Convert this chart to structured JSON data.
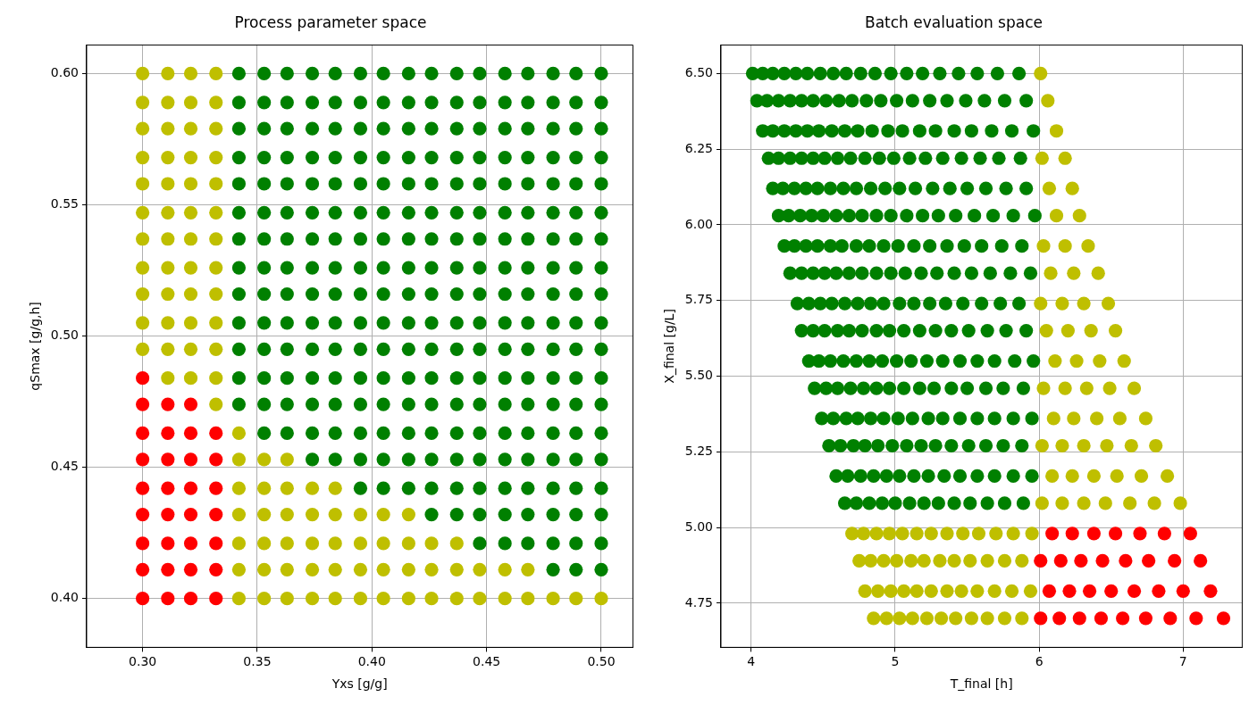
{
  "chart_data": [
    {
      "type": "scatter",
      "title": "Process parameter space",
      "xlabel": "Yxs [g/g]",
      "ylabel": "qSmax [g/g,h]",
      "xlim": [
        0.2756,
        0.5138
      ],
      "ylim": [
        0.3814,
        0.6109
      ],
      "xticks": [
        {
          "value": 0.3,
          "label": "0.30"
        },
        0.35,
        {
          "value": 0.4,
          "label": "0.40"
        },
        0.45,
        {
          "value": 0.5,
          "label": "0.50"
        }
      ],
      "yticks": [
        {
          "value": 0.4,
          "label": "0.40"
        },
        0.45,
        {
          "value": 0.5,
          "label": "0.50"
        },
        0.55,
        {
          "value": 0.6,
          "label": "0.60"
        }
      ],
      "grid": true,
      "legend": false,
      "marker": "circle",
      "series": [
        {
          "color": "#ff0000",
          "x": [
            0.3,
            0.3,
            0.3,
            0.3,
            0.3,
            0.3,
            0.3,
            0.3,
            0.3,
            0.311,
            0.311,
            0.311,
            0.311,
            0.311,
            0.311,
            0.311,
            0.311,
            0.321,
            0.321,
            0.321,
            0.321,
            0.321,
            0.321,
            0.321,
            0.321,
            0.332,
            0.332,
            0.332,
            0.332,
            0.332,
            0.332,
            0.332
          ],
          "values": [
            0.4,
            0.411,
            0.421,
            0.432,
            0.442,
            0.453,
            0.463,
            0.474,
            0.484,
            0.4,
            0.411,
            0.421,
            0.432,
            0.442,
            0.453,
            0.463,
            0.474,
            0.4,
            0.411,
            0.421,
            0.432,
            0.442,
            0.453,
            0.463,
            0.474,
            0.4,
            0.411,
            0.421,
            0.432,
            0.442,
            0.453,
            0.463
          ]
        },
        {
          "color": "#bfbf00",
          "x": [
            0.3,
            0.3,
            0.3,
            0.3,
            0.3,
            0.3,
            0.3,
            0.3,
            0.3,
            0.3,
            0.3,
            0.311,
            0.311,
            0.311,
            0.311,
            0.311,
            0.311,
            0.311,
            0.311,
            0.311,
            0.311,
            0.311,
            0.311,
            0.321,
            0.321,
            0.321,
            0.321,
            0.321,
            0.321,
            0.321,
            0.321,
            0.321,
            0.321,
            0.321,
            0.321,
            0.332,
            0.332,
            0.332,
            0.332,
            0.332,
            0.332,
            0.332,
            0.332,
            0.332,
            0.332,
            0.332,
            0.332,
            0.332,
            0.342,
            0.342,
            0.342,
            0.342,
            0.342,
            0.342,
            0.342,
            0.353,
            0.353,
            0.353,
            0.353,
            0.353,
            0.353,
            0.363,
            0.363,
            0.363,
            0.363,
            0.363,
            0.363,
            0.374,
            0.374,
            0.374,
            0.374,
            0.374,
            0.384,
            0.384,
            0.384,
            0.384,
            0.384,
            0.395,
            0.395,
            0.395,
            0.395,
            0.405,
            0.405,
            0.405,
            0.405,
            0.416,
            0.416,
            0.416,
            0.416,
            0.426,
            0.426,
            0.426,
            0.437,
            0.437,
            0.437,
            0.447,
            0.447,
            0.458,
            0.458,
            0.468,
            0.468,
            0.479,
            0.489,
            0.5
          ],
          "values": [
            0.495,
            0.505,
            0.516,
            0.526,
            0.537,
            0.547,
            0.558,
            0.568,
            0.579,
            0.589,
            0.6,
            0.484,
            0.495,
            0.505,
            0.516,
            0.526,
            0.537,
            0.547,
            0.558,
            0.568,
            0.579,
            0.589,
            0.6,
            0.484,
            0.495,
            0.505,
            0.516,
            0.526,
            0.537,
            0.547,
            0.558,
            0.568,
            0.579,
            0.589,
            0.6,
            0.474,
            0.484,
            0.495,
            0.505,
            0.516,
            0.526,
            0.537,
            0.547,
            0.558,
            0.568,
            0.579,
            0.589,
            0.6,
            0.4,
            0.411,
            0.421,
            0.432,
            0.442,
            0.453,
            0.463,
            0.4,
            0.411,
            0.421,
            0.432,
            0.442,
            0.453,
            0.4,
            0.411,
            0.421,
            0.432,
            0.442,
            0.453,
            0.4,
            0.411,
            0.421,
            0.432,
            0.442,
            0.4,
            0.411,
            0.421,
            0.432,
            0.442,
            0.4,
            0.411,
            0.421,
            0.432,
            0.4,
            0.411,
            0.421,
            0.432,
            0.4,
            0.411,
            0.421,
            0.432,
            0.4,
            0.411,
            0.421,
            0.4,
            0.411,
            0.421,
            0.4,
            0.411,
            0.4,
            0.411,
            0.4,
            0.411,
            0.4,
            0.4,
            0.4
          ]
        },
        {
          "color": "#008000",
          "x": [
            0.342,
            0.342,
            0.342,
            0.342,
            0.342,
            0.342,
            0.342,
            0.342,
            0.342,
            0.342,
            0.342,
            0.342,
            0.342,
            0.353,
            0.353,
            0.353,
            0.353,
            0.353,
            0.353,
            0.353,
            0.353,
            0.353,
            0.353,
            0.353,
            0.353,
            0.353,
            0.353,
            0.363,
            0.363,
            0.363,
            0.363,
            0.363,
            0.363,
            0.363,
            0.363,
            0.363,
            0.363,
            0.363,
            0.363,
            0.363,
            0.363,
            0.374,
            0.374,
            0.374,
            0.374,
            0.374,
            0.374,
            0.374,
            0.374,
            0.374,
            0.374,
            0.374,
            0.374,
            0.374,
            0.374,
            0.374,
            0.384,
            0.384,
            0.384,
            0.384,
            0.384,
            0.384,
            0.384,
            0.384,
            0.384,
            0.384,
            0.384,
            0.384,
            0.384,
            0.384,
            0.384,
            0.395,
            0.395,
            0.395,
            0.395,
            0.395,
            0.395,
            0.395,
            0.395,
            0.395,
            0.395,
            0.395,
            0.395,
            0.395,
            0.395,
            0.395,
            0.395,
            0.405,
            0.405,
            0.405,
            0.405,
            0.405,
            0.405,
            0.405,
            0.405,
            0.405,
            0.405,
            0.405,
            0.405,
            0.405,
            0.405,
            0.405,
            0.405,
            0.416,
            0.416,
            0.416,
            0.416,
            0.416,
            0.416,
            0.416,
            0.416,
            0.416,
            0.416,
            0.416,
            0.416,
            0.416,
            0.416,
            0.416,
            0.416,
            0.426,
            0.426,
            0.426,
            0.426,
            0.426,
            0.426,
            0.426,
            0.426,
            0.426,
            0.426,
            0.426,
            0.426,
            0.426,
            0.426,
            0.426,
            0.426,
            0.426,
            0.437,
            0.437,
            0.437,
            0.437,
            0.437,
            0.437,
            0.437,
            0.437,
            0.437,
            0.437,
            0.437,
            0.437,
            0.437,
            0.437,
            0.437,
            0.437,
            0.437,
            0.447,
            0.447,
            0.447,
            0.447,
            0.447,
            0.447,
            0.447,
            0.447,
            0.447,
            0.447,
            0.447,
            0.447,
            0.447,
            0.447,
            0.447,
            0.447,
            0.447,
            0.447,
            0.458,
            0.458,
            0.458,
            0.458,
            0.458,
            0.458,
            0.458,
            0.458,
            0.458,
            0.458,
            0.458,
            0.458,
            0.458,
            0.458,
            0.458,
            0.458,
            0.458,
            0.458,
            0.468,
            0.468,
            0.468,
            0.468,
            0.468,
            0.468,
            0.468,
            0.468,
            0.468,
            0.468,
            0.468,
            0.468,
            0.468,
            0.468,
            0.468,
            0.468,
            0.468,
            0.468,
            0.479,
            0.479,
            0.479,
            0.479,
            0.479,
            0.479,
            0.479,
            0.479,
            0.479,
            0.479,
            0.479,
            0.479,
            0.479,
            0.479,
            0.479,
            0.479,
            0.479,
            0.479,
            0.479,
            0.489,
            0.489,
            0.489,
            0.489,
            0.489,
            0.489,
            0.489,
            0.489,
            0.489,
            0.489,
            0.489,
            0.489,
            0.489,
            0.489,
            0.489,
            0.489,
            0.489,
            0.489,
            0.489,
            0.5,
            0.5,
            0.5,
            0.5,
            0.5,
            0.5,
            0.5,
            0.5,
            0.5,
            0.5,
            0.5,
            0.5,
            0.5,
            0.5,
            0.5,
            0.5,
            0.5,
            0.5,
            0.5
          ],
          "values": [
            0.474,
            0.484,
            0.495,
            0.505,
            0.516,
            0.526,
            0.537,
            0.547,
            0.558,
            0.568,
            0.579,
            0.589,
            0.6,
            0.463,
            0.474,
            0.484,
            0.495,
            0.505,
            0.516,
            0.526,
            0.537,
            0.547,
            0.558,
            0.568,
            0.579,
            0.589,
            0.6,
            0.463,
            0.474,
            0.484,
            0.495,
            0.505,
            0.516,
            0.526,
            0.537,
            0.547,
            0.558,
            0.568,
            0.579,
            0.589,
            0.6,
            0.453,
            0.463,
            0.474,
            0.484,
            0.495,
            0.505,
            0.516,
            0.526,
            0.537,
            0.547,
            0.558,
            0.568,
            0.579,
            0.589,
            0.6,
            0.453,
            0.463,
            0.474,
            0.484,
            0.495,
            0.505,
            0.516,
            0.526,
            0.537,
            0.547,
            0.558,
            0.568,
            0.579,
            0.589,
            0.6,
            0.442,
            0.453,
            0.463,
            0.474,
            0.484,
            0.495,
            0.505,
            0.516,
            0.526,
            0.537,
            0.547,
            0.558,
            0.568,
            0.579,
            0.589,
            0.6,
            0.442,
            0.453,
            0.463,
            0.474,
            0.484,
            0.495,
            0.505,
            0.516,
            0.526,
            0.537,
            0.547,
            0.558,
            0.568,
            0.579,
            0.589,
            0.6,
            0.442,
            0.453,
            0.463,
            0.474,
            0.484,
            0.495,
            0.505,
            0.516,
            0.526,
            0.537,
            0.547,
            0.558,
            0.568,
            0.579,
            0.589,
            0.6,
            0.432,
            0.442,
            0.453,
            0.463,
            0.474,
            0.484,
            0.495,
            0.505,
            0.516,
            0.526,
            0.537,
            0.547,
            0.558,
            0.568,
            0.579,
            0.589,
            0.6,
            0.432,
            0.442,
            0.453,
            0.463,
            0.474,
            0.484,
            0.495,
            0.505,
            0.516,
            0.526,
            0.537,
            0.547,
            0.558,
            0.568,
            0.579,
            0.589,
            0.6,
            0.421,
            0.432,
            0.442,
            0.453,
            0.463,
            0.474,
            0.484,
            0.495,
            0.505,
            0.516,
            0.526,
            0.537,
            0.547,
            0.558,
            0.568,
            0.579,
            0.589,
            0.6,
            0.421,
            0.432,
            0.442,
            0.453,
            0.463,
            0.474,
            0.484,
            0.495,
            0.505,
            0.516,
            0.526,
            0.537,
            0.547,
            0.558,
            0.568,
            0.579,
            0.589,
            0.6,
            0.421,
            0.432,
            0.442,
            0.453,
            0.463,
            0.474,
            0.484,
            0.495,
            0.505,
            0.516,
            0.526,
            0.537,
            0.547,
            0.558,
            0.568,
            0.579,
            0.589,
            0.6,
            0.411,
            0.421,
            0.432,
            0.442,
            0.453,
            0.463,
            0.474,
            0.484,
            0.495,
            0.505,
            0.516,
            0.526,
            0.537,
            0.547,
            0.558,
            0.568,
            0.579,
            0.589,
            0.6,
            0.411,
            0.421,
            0.432,
            0.442,
            0.453,
            0.463,
            0.474,
            0.484,
            0.495,
            0.505,
            0.516,
            0.526,
            0.537,
            0.547,
            0.558,
            0.568,
            0.579,
            0.589,
            0.6,
            0.411,
            0.421,
            0.432,
            0.442,
            0.453,
            0.463,
            0.474,
            0.484,
            0.495,
            0.505,
            0.516,
            0.526,
            0.537,
            0.547,
            0.558,
            0.568,
            0.579,
            0.589,
            0.6
          ]
        }
      ]
    },
    {
      "type": "scatter",
      "title": "Batch evaluation space",
      "xlabel": "T_final [h]",
      "ylabel": "X_final [g/L]",
      "xlim": [
        3.79,
        7.41
      ],
      "ylim": [
        4.604,
        6.594
      ],
      "xticks": [
        4,
        5,
        6,
        7
      ],
      "yticks": [
        4.75,
        {
          "value": 5,
          "label": "5.00"
        },
        5.25,
        {
          "value": 5.5,
          "label": "5.50"
        },
        5.75,
        {
          "value": 6,
          "label": "6.00"
        },
        6.25,
        {
          "value": 6.5,
          "label": "6.50"
        }
      ],
      "grid": true,
      "legend": false,
      "marker": "circle",
      "series": [
        {
          "color": "#ff0000",
          "x": [
            7.28,
            7.09,
            6.91,
            6.74,
            6.58,
            6.43,
            6.28,
            6.14,
            6.01,
            7.19,
            7.0,
            6.83,
            6.66,
            6.5,
            6.35,
            6.21,
            6.07,
            7.12,
            6.94,
            6.76,
            6.6,
            6.44,
            6.29,
            6.15,
            6.01,
            7.05,
            6.87,
            6.7,
            6.53,
            6.38,
            6.23,
            6.09
          ],
          "values": [
            4.7,
            4.7,
            4.7,
            4.7,
            4.7,
            4.7,
            4.7,
            4.7,
            4.7,
            4.79,
            4.79,
            4.79,
            4.79,
            4.79,
            4.79,
            4.79,
            4.79,
            4.89,
            4.89,
            4.89,
            4.89,
            4.89,
            4.89,
            4.89,
            4.89,
            4.98,
            4.98,
            4.98,
            4.98,
            4.98,
            4.98,
            4.98
          ]
        },
        {
          "color": "#bfbf00",
          "x": [
            5.88,
            5.76,
            5.64,
            5.53,
            5.42,
            5.32,
            5.22,
            5.12,
            5.03,
            4.94,
            4.85,
            5.94,
            5.81,
            5.69,
            5.57,
            5.46,
            5.36,
            5.25,
            5.15,
            5.06,
            4.97,
            4.88,
            4.79,
            5.88,
            5.76,
            5.64,
            5.52,
            5.41,
            5.31,
            5.2,
            5.11,
            5.01,
            4.92,
            4.83,
            4.75,
            5.95,
            5.82,
            5.7,
            5.58,
            5.47,
            5.36,
            5.25,
            5.15,
            5.05,
            4.96,
            4.87,
            4.78,
            4.7,
            6.98,
            6.8,
            6.63,
            6.46,
            6.31,
            6.16,
            6.02,
            6.89,
            6.71,
            6.54,
            6.38,
            6.23,
            6.09,
            6.81,
            6.64,
            6.47,
            6.31,
            6.16,
            6.02,
            6.74,
            6.56,
            6.4,
            6.24,
            6.1,
            6.66,
            6.49,
            6.33,
            6.18,
            6.03,
            6.59,
            6.42,
            6.26,
            6.11,
            6.53,
            6.36,
            6.2,
            6.05,
            6.48,
            6.31,
            6.16,
            6.01,
            6.41,
            6.24,
            6.08,
            6.34,
            6.18,
            6.03,
            6.28,
            6.12,
            6.23,
            6.07,
            6.18,
            6.02,
            6.12,
            6.06,
            6.01
          ],
          "values": [
            4.7,
            4.7,
            4.7,
            4.7,
            4.7,
            4.7,
            4.7,
            4.7,
            4.7,
            4.7,
            4.7,
            4.79,
            4.79,
            4.79,
            4.79,
            4.79,
            4.79,
            4.79,
            4.79,
            4.79,
            4.79,
            4.79,
            4.79,
            4.89,
            4.89,
            4.89,
            4.89,
            4.89,
            4.89,
            4.89,
            4.89,
            4.89,
            4.89,
            4.89,
            4.89,
            4.98,
            4.98,
            4.98,
            4.98,
            4.98,
            4.98,
            4.98,
            4.98,
            4.98,
            4.98,
            4.98,
            4.98,
            4.98,
            5.08,
            5.08,
            5.08,
            5.08,
            5.08,
            5.08,
            5.08,
            5.17,
            5.17,
            5.17,
            5.17,
            5.17,
            5.17,
            5.27,
            5.27,
            5.27,
            5.27,
            5.27,
            5.27,
            5.36,
            5.36,
            5.36,
            5.36,
            5.36,
            5.46,
            5.46,
            5.46,
            5.46,
            5.46,
            5.55,
            5.55,
            5.55,
            5.55,
            5.65,
            5.65,
            5.65,
            5.65,
            5.74,
            5.74,
            5.74,
            5.74,
            5.84,
            5.84,
            5.84,
            5.93,
            5.93,
            5.93,
            6.03,
            6.03,
            6.12,
            6.12,
            6.22,
            6.22,
            6.31,
            6.41,
            6.5
          ]
        },
        {
          "color": "#008000",
          "x": [
            5.89,
            5.76,
            5.64,
            5.52,
            5.41,
            5.3,
            5.2,
            5.1,
            5.0,
            4.91,
            4.82,
            4.73,
            4.65,
            5.95,
            5.82,
            5.69,
            5.57,
            5.45,
            5.34,
            5.23,
            5.13,
            5.03,
            4.94,
            4.85,
            4.76,
            4.67,
            4.59,
            5.88,
            5.75,
            5.63,
            5.51,
            5.39,
            5.28,
            5.18,
            5.08,
            4.98,
            4.88,
            4.79,
            4.71,
            4.62,
            4.54,
            5.95,
            5.82,
            5.69,
            5.57,
            5.45,
            5.33,
            5.23,
            5.12,
            5.02,
            4.92,
            4.83,
            4.74,
            4.66,
            4.57,
            4.49,
            5.89,
            5.75,
            5.63,
            5.5,
            5.39,
            5.27,
            5.17,
            5.06,
            4.96,
            4.87,
            4.78,
            4.69,
            4.6,
            4.52,
            4.44,
            5.96,
            5.83,
            5.69,
            5.57,
            5.45,
            5.33,
            5.22,
            5.11,
            5.01,
            4.91,
            4.82,
            4.73,
            4.64,
            4.55,
            4.47,
            4.4,
            5.91,
            5.77,
            5.64,
            5.51,
            5.39,
            5.28,
            5.17,
            5.06,
            4.96,
            4.87,
            4.77,
            4.68,
            4.6,
            4.51,
            4.43,
            4.35,
            5.86,
            5.73,
            5.6,
            5.47,
            5.35,
            5.24,
            5.13,
            5.03,
            4.92,
            4.83,
            4.74,
            4.65,
            4.56,
            4.48,
            4.4,
            4.32,
            5.94,
            5.8,
            5.66,
            5.53,
            5.41,
            5.29,
            5.18,
            5.07,
            4.97,
            4.87,
            4.77,
            4.68,
            4.59,
            4.51,
            4.43,
            4.35,
            4.27,
            5.88,
            5.74,
            5.6,
            5.48,
            5.36,
            5.24,
            5.13,
            5.02,
            4.92,
            4.82,
            4.73,
            4.63,
            4.55,
            4.46,
            4.38,
            4.3,
            4.23,
            5.97,
            5.82,
            5.68,
            5.55,
            5.42,
            5.3,
            5.19,
            5.08,
            4.97,
            4.87,
            4.77,
            4.68,
            4.59,
            4.5,
            4.42,
            4.34,
            4.26,
            4.19,
            5.91,
            5.77,
            5.63,
            5.5,
            5.38,
            5.26,
            5.14,
            5.03,
            4.93,
            4.83,
            4.73,
            4.64,
            4.55,
            4.46,
            4.38,
            4.3,
            4.22,
            4.15,
            5.87,
            5.72,
            5.59,
            5.46,
            5.33,
            5.21,
            5.1,
            4.99,
            4.89,
            4.79,
            4.69,
            4.6,
            4.51,
            4.43,
            4.35,
            4.27,
            4.19,
            4.12,
            5.96,
            5.81,
            5.67,
            5.53,
            5.41,
            5.28,
            5.17,
            5.05,
            4.95,
            4.84,
            4.74,
            4.65,
            4.56,
            4.47,
            4.39,
            4.31,
            4.23,
            4.15,
            4.08,
            5.91,
            5.76,
            5.62,
            5.49,
            5.36,
            5.24,
            5.12,
            5.01,
            4.9,
            4.8,
            4.7,
            4.61,
            4.52,
            4.43,
            4.35,
            4.27,
            4.19,
            4.11,
            4.04,
            5.86,
            5.71,
            5.57,
            5.44,
            5.31,
            5.19,
            5.08,
            4.97,
            4.86,
            4.76,
            4.66,
            4.57,
            4.48,
            4.39,
            4.31,
            4.23,
            4.15,
            4.08,
            4.01
          ],
          "values": [
            5.08,
            5.08,
            5.08,
            5.08,
            5.08,
            5.08,
            5.08,
            5.08,
            5.08,
            5.08,
            5.08,
            5.08,
            5.08,
            5.17,
            5.17,
            5.17,
            5.17,
            5.17,
            5.17,
            5.17,
            5.17,
            5.17,
            5.17,
            5.17,
            5.17,
            5.17,
            5.17,
            5.27,
            5.27,
            5.27,
            5.27,
            5.27,
            5.27,
            5.27,
            5.27,
            5.27,
            5.27,
            5.27,
            5.27,
            5.27,
            5.27,
            5.36,
            5.36,
            5.36,
            5.36,
            5.36,
            5.36,
            5.36,
            5.36,
            5.36,
            5.36,
            5.36,
            5.36,
            5.36,
            5.36,
            5.36,
            5.46,
            5.46,
            5.46,
            5.46,
            5.46,
            5.46,
            5.46,
            5.46,
            5.46,
            5.46,
            5.46,
            5.46,
            5.46,
            5.46,
            5.46,
            5.55,
            5.55,
            5.55,
            5.55,
            5.55,
            5.55,
            5.55,
            5.55,
            5.55,
            5.55,
            5.55,
            5.55,
            5.55,
            5.55,
            5.55,
            5.55,
            5.65,
            5.65,
            5.65,
            5.65,
            5.65,
            5.65,
            5.65,
            5.65,
            5.65,
            5.65,
            5.65,
            5.65,
            5.65,
            5.65,
            5.65,
            5.65,
            5.74,
            5.74,
            5.74,
            5.74,
            5.74,
            5.74,
            5.74,
            5.74,
            5.74,
            5.74,
            5.74,
            5.74,
            5.74,
            5.74,
            5.74,
            5.74,
            5.84,
            5.84,
            5.84,
            5.84,
            5.84,
            5.84,
            5.84,
            5.84,
            5.84,
            5.84,
            5.84,
            5.84,
            5.84,
            5.84,
            5.84,
            5.84,
            5.84,
            5.93,
            5.93,
            5.93,
            5.93,
            5.93,
            5.93,
            5.93,
            5.93,
            5.93,
            5.93,
            5.93,
            5.93,
            5.93,
            5.93,
            5.93,
            5.93,
            5.93,
            6.03,
            6.03,
            6.03,
            6.03,
            6.03,
            6.03,
            6.03,
            6.03,
            6.03,
            6.03,
            6.03,
            6.03,
            6.03,
            6.03,
            6.03,
            6.03,
            6.03,
            6.03,
            6.12,
            6.12,
            6.12,
            6.12,
            6.12,
            6.12,
            6.12,
            6.12,
            6.12,
            6.12,
            6.12,
            6.12,
            6.12,
            6.12,
            6.12,
            6.12,
            6.12,
            6.12,
            6.22,
            6.22,
            6.22,
            6.22,
            6.22,
            6.22,
            6.22,
            6.22,
            6.22,
            6.22,
            6.22,
            6.22,
            6.22,
            6.22,
            6.22,
            6.22,
            6.22,
            6.22,
            6.31,
            6.31,
            6.31,
            6.31,
            6.31,
            6.31,
            6.31,
            6.31,
            6.31,
            6.31,
            6.31,
            6.31,
            6.31,
            6.31,
            6.31,
            6.31,
            6.31,
            6.31,
            6.31,
            6.41,
            6.41,
            6.41,
            6.41,
            6.41,
            6.41,
            6.41,
            6.41,
            6.41,
            6.41,
            6.41,
            6.41,
            6.41,
            6.41,
            6.41,
            6.41,
            6.41,
            6.41,
            6.41,
            6.5,
            6.5,
            6.5,
            6.5,
            6.5,
            6.5,
            6.5,
            6.5,
            6.5,
            6.5,
            6.5,
            6.5,
            6.5,
            6.5,
            6.5,
            6.5,
            6.5,
            6.5,
            6.5
          ]
        }
      ]
    }
  ]
}
